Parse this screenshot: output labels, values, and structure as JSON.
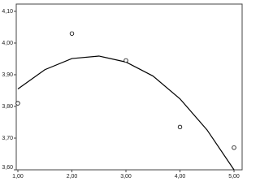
{
  "chart_data": {
    "type": "scatter",
    "x": [
      1,
      2,
      3,
      4,
      5
    ],
    "values": [
      3.81,
      4.03,
      3.945,
      3.735,
      3.67
    ],
    "color": "#000000",
    "fit": {
      "x": [
        1,
        1.5,
        2,
        2.5,
        3,
        3.5,
        4,
        4.5,
        5
      ],
      "values": [
        3.855,
        3.916,
        3.951,
        3.959,
        3.94,
        3.896,
        3.824,
        3.726,
        3.6
      ],
      "color": "#000000"
    },
    "xlim": [
      0.97,
      5.15
    ],
    "ylim": [
      3.6,
      4.123
    ],
    "xticks": [
      {
        "value": 1,
        "label": "1,00"
      },
      {
        "value": 2,
        "label": "2,00"
      },
      {
        "value": 3,
        "label": "3,00"
      },
      {
        "value": 4,
        "label": "4,00"
      },
      {
        "value": 5,
        "label": "5,00"
      }
    ],
    "yticks": [
      {
        "value": 3.6,
        "label": "3,60"
      },
      {
        "value": 3.7,
        "label": "3,70"
      },
      {
        "value": 3.8,
        "label": "3,80"
      },
      {
        "value": 3.9,
        "label": "3,90"
      },
      {
        "value": 4.0,
        "label": "4,00"
      },
      {
        "value": 4.1,
        "label": "4,10"
      }
    ],
    "grid": false
  }
}
